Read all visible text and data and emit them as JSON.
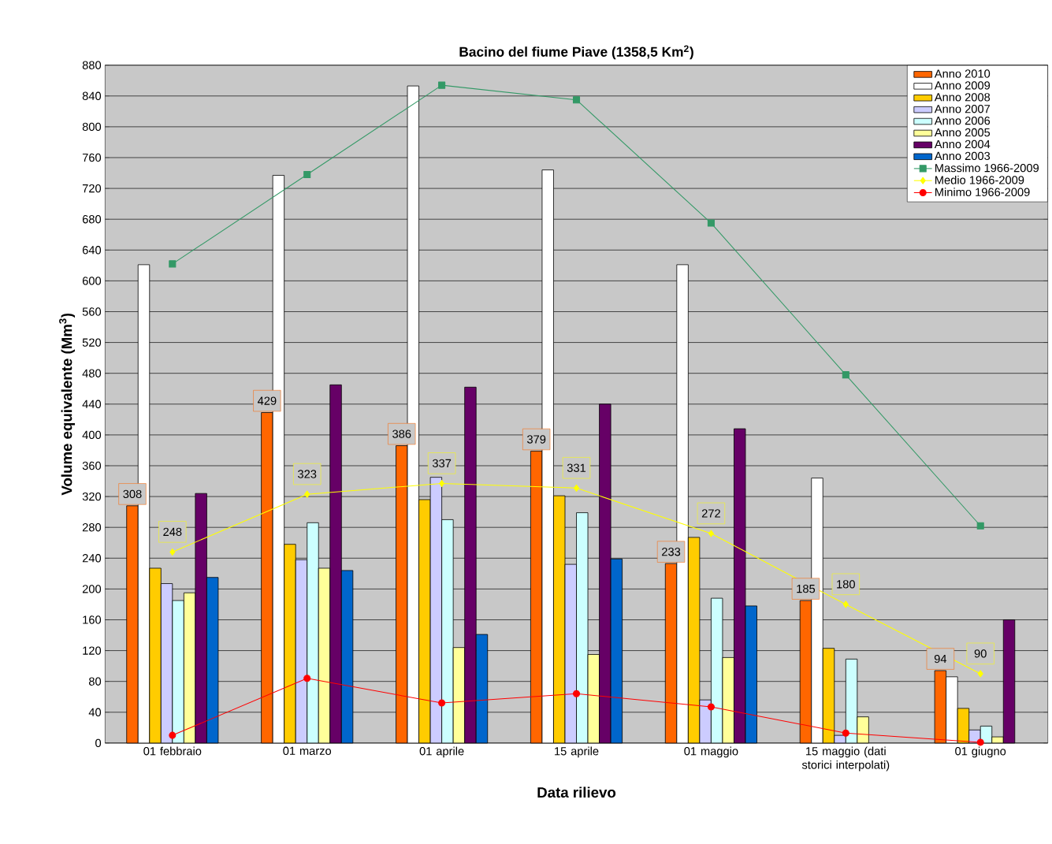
{
  "chart_data": {
    "type": "bar",
    "title": "Bacino del fiume Piave (1358,5 Km$^{2}$)",
    "xlabel": "Data rilievo",
    "ylabel": "Volume equivalente (Mm$^{3}$)",
    "categories": [
      "01 febbraio",
      "01 marzo",
      "01 aprile",
      "15 aprile",
      "01 maggio",
      "15 maggio (dati storici interpolati)",
      "01 giugno"
    ],
    "ylim": [
      0,
      880
    ],
    "yticks": [
      0,
      40,
      80,
      120,
      160,
      200,
      240,
      280,
      320,
      360,
      400,
      440,
      480,
      520,
      560,
      600,
      640,
      680,
      720,
      760,
      800,
      840,
      880
    ],
    "grid": "y",
    "legend": "top right",
    "series": [
      {
        "name": "Anno 2010",
        "color": "#ff6600",
        "values": [
          308,
          429,
          386,
          379,
          233,
          185,
          94
        ],
        "value_labels": [
          "308",
          "429",
          "386",
          "379",
          "233",
          "185",
          "94"
        ]
      },
      {
        "name": "Anno 2009",
        "color": "#ffffff",
        "values": [
          621,
          737,
          853,
          744,
          621,
          344,
          86
        ]
      },
      {
        "name": "Anno 2008",
        "color": "#ffcc00",
        "values": [
          227,
          258,
          316,
          321,
          267,
          123,
          45
        ]
      },
      {
        "name": "Anno 2007",
        "color": "#ccccff",
        "values": [
          207,
          238,
          345,
          232,
          56,
          10,
          17
        ]
      },
      {
        "name": "Anno 2006",
        "color": "#ccffff",
        "values": [
          185,
          286,
          290,
          299,
          188,
          109,
          22
        ]
      },
      {
        "name": "Anno 2005",
        "color": "#ffff99",
        "values": [
          195,
          227,
          124,
          115,
          111,
          34,
          8
        ]
      },
      {
        "name": "Anno 2004",
        "color": "#660066",
        "values": [
          324,
          465,
          462,
          440,
          408,
          null,
          160
        ]
      },
      {
        "name": "Anno 2003",
        "color": "#0066cc",
        "values": [
          215,
          224,
          141,
          239,
          178,
          null,
          null
        ]
      },
      {
        "name": "Massimo  1966-2009",
        "type": "line",
        "marker": "square",
        "color": "#339966",
        "values": [
          622,
          738,
          854,
          835,
          675,
          478,
          282
        ]
      },
      {
        "name": "Medio      1966-2009",
        "type": "line",
        "marker": "diamond",
        "color": "#ffff00",
        "values": [
          248,
          323,
          337,
          331,
          272,
          180,
          90
        ],
        "value_labels": [
          "248",
          "323",
          "337",
          "331",
          "272",
          "180",
          "90"
        ]
      },
      {
        "name": "Minimo     1966-2009",
        "type": "line",
        "marker": "circle",
        "color": "#ff0000",
        "values": [
          10,
          84,
          52,
          64,
          47,
          13,
          1
        ]
      }
    ]
  }
}
